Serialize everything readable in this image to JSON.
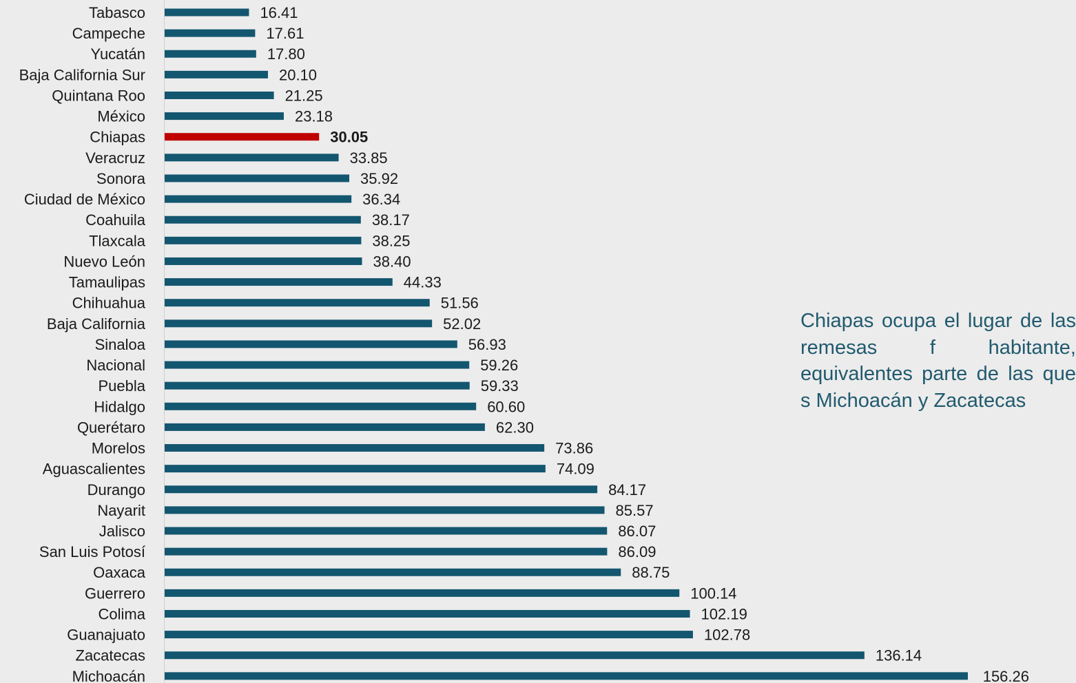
{
  "chart_data": {
    "type": "bar",
    "orientation": "horizontal",
    "title": "",
    "xlabel": "",
    "ylabel": "",
    "xlim": [
      0,
      156.26
    ],
    "grid": false,
    "legend": "none",
    "categories": [
      "Tabasco",
      "Campeche",
      "Yucatán",
      "Baja California Sur",
      "Quintana Roo",
      "México",
      "Chiapas",
      "Veracruz",
      "Sonora",
      "Ciudad de México",
      "Coahuila",
      "Tlaxcala",
      "Nuevo León",
      "Tamaulipas",
      "Chihuahua",
      "Baja California",
      "Sinaloa",
      "Nacional",
      "Puebla",
      "Hidalgo",
      "Querétaro",
      "Morelos",
      "Aguascalientes",
      "Durango",
      "Nayarit",
      "Jalisco",
      "San Luis Potosí",
      "Oaxaca",
      "Guerrero",
      "Colima",
      "Guanajuato",
      "Zacatecas",
      "Michoacán"
    ],
    "values": [
      16.41,
      17.61,
      17.8,
      20.1,
      21.25,
      23.18,
      30.05,
      33.85,
      35.92,
      36.34,
      38.17,
      38.25,
      38.4,
      44.33,
      51.56,
      52.02,
      56.93,
      59.26,
      59.33,
      60.6,
      62.3,
      73.86,
      74.09,
      84.17,
      85.57,
      86.07,
      86.09,
      88.75,
      100.14,
      102.19,
      102.78,
      136.14,
      156.26
    ],
    "value_labels": [
      "16.41",
      "17.61",
      "17.80",
      "20.10",
      "21.25",
      "23.18",
      "30.05",
      "33.85",
      "35.92",
      "36.34",
      "38.17",
      "38.25",
      "38.40",
      "44.33",
      "51.56",
      "52.02",
      "56.93",
      "59.26",
      "59.33",
      "60.60",
      "62.30",
      "73.86",
      "74.09",
      "84.17",
      "85.57",
      "86.07",
      "86.09",
      "88.75",
      "100.14",
      "102.19",
      "102.78",
      "136.14",
      "156.26"
    ],
    "highlight_category": "Chiapas",
    "bar_color": "#13566f",
    "highlight_color": "#c00000"
  },
  "annotation": {
    "text": "Chiapas ocupa el lugar de las remesas f habitante, equivalentes parte de las que s Michoacán y Zacatecas"
  }
}
